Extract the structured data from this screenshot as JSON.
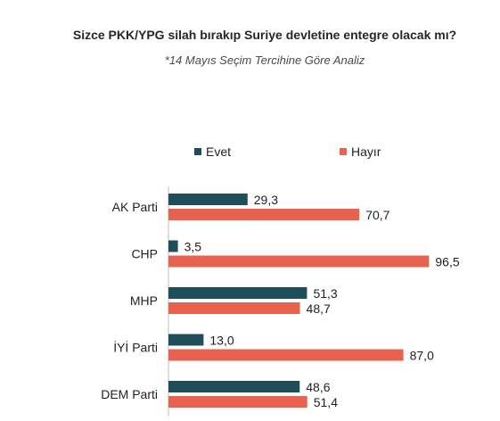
{
  "chart_data": {
    "type": "bar",
    "orientation": "horizontal",
    "title": "Sizce PKK/YPG silah bırakıp Suriye devletine entegre olacak mı?",
    "subtitle": "*14 Mayıs Seçim Tercihine Göre Analiz",
    "categories": [
      "AK Parti",
      "CHP",
      "MHP",
      "İYİ Parti",
      "DEM Parti"
    ],
    "series": [
      {
        "name": "Evet",
        "color": "#1d4e5a",
        "values": [
          29.3,
          3.5,
          51.3,
          13.0,
          48.6
        ],
        "labels": [
          "29,3",
          "3,5",
          "51,3",
          "13,0",
          "48,6"
        ]
      },
      {
        "name": "Hayır",
        "color": "#e8634f",
        "values": [
          70.7,
          96.5,
          48.7,
          87.0,
          51.4
        ],
        "labels": [
          "70,7",
          "96,5",
          "48,7",
          "87,0",
          "51,4"
        ]
      }
    ],
    "xlim": [
      0,
      100
    ],
    "grid": false,
    "legend_position": "top"
  }
}
